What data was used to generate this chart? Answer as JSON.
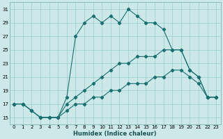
{
  "xlabel": "Humidex (Indice chaleur)",
  "bg_color": "#cce8e8",
  "grid_color": "#99cccc",
  "line_color": "#1a7070",
  "xlim": [
    -0.5,
    23.5
  ],
  "ylim": [
    14,
    32
  ],
  "yticks": [
    15,
    17,
    19,
    21,
    23,
    25,
    27,
    29,
    31
  ],
  "xticks": [
    0,
    1,
    2,
    3,
    4,
    5,
    6,
    7,
    8,
    9,
    10,
    11,
    12,
    13,
    14,
    15,
    16,
    17,
    18,
    19,
    20,
    21,
    22,
    23
  ],
  "line1_x": [
    0,
    1,
    2,
    3,
    4,
    5,
    6,
    7,
    8,
    9,
    10,
    11,
    12,
    13,
    14,
    15,
    16,
    17,
    18,
    19,
    20,
    21,
    22,
    23
  ],
  "line1_y": [
    17,
    17,
    16,
    15,
    15,
    15,
    18,
    27,
    29,
    30,
    29,
    30,
    29,
    31,
    30,
    29,
    29,
    28,
    25,
    25,
    22,
    21,
    18,
    18
  ],
  "line2_x": [
    0,
    1,
    2,
    3,
    4,
    5,
    6,
    7,
    8,
    9,
    10,
    11,
    12,
    13,
    14,
    15,
    16,
    17,
    18,
    19,
    20,
    21,
    22,
    23
  ],
  "line2_y": [
    17,
    17,
    16,
    15,
    15,
    15,
    17,
    18,
    19,
    20,
    21,
    22,
    23,
    23,
    24,
    24,
    24,
    25,
    25,
    25,
    22,
    21,
    18,
    18
  ],
  "line3_x": [
    0,
    1,
    2,
    3,
    4,
    5,
    6,
    7,
    8,
    9,
    10,
    11,
    12,
    13,
    14,
    15,
    16,
    17,
    18,
    19,
    20,
    21,
    22,
    23
  ],
  "line3_y": [
    17,
    17,
    16,
    15,
    15,
    15,
    16,
    17,
    17,
    18,
    18,
    19,
    19,
    20,
    20,
    20,
    21,
    21,
    22,
    22,
    21,
    20,
    18,
    18
  ]
}
